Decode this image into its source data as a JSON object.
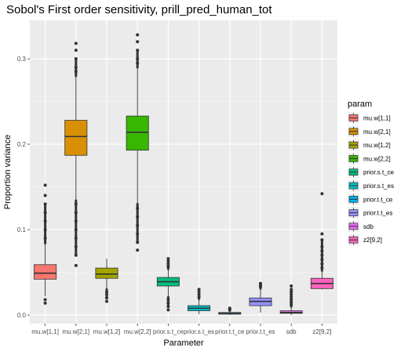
{
  "chart_data": {
    "type": "boxplot",
    "title": "Sobol's First order sensitivity,  prill_pred_human_tot",
    "xlabel": "Parameter",
    "ylabel": "Proportion variance",
    "ylim": [
      -0.01,
      0.345
    ],
    "yticks": [
      0.0,
      0.1,
      0.2,
      0.3
    ],
    "ytick_labels": [
      "0.0",
      "0.1",
      "0.2",
      "0.3"
    ],
    "grid": true,
    "legend": {
      "title": "param",
      "placement": "right"
    },
    "categories": [
      "mu.w[1,1]",
      "mu.w[2,1]",
      "mu.w[1,2]",
      "mu.w[2,2]",
      "prior.s.t_ce",
      "prior.s.t_es",
      "prior.t.t_ce",
      "prior.t.t_es",
      "sdb",
      "z2[9,2]"
    ],
    "series": [
      {
        "name": "mu.w[1,1]",
        "color": "#F8766D",
        "min": 0.022,
        "q1": 0.042,
        "median": 0.049,
        "q3": 0.059,
        "max": 0.084,
        "outliers_low": [
          0.014,
          0.018
        ],
        "outliers_high": [
          0.09,
          0.1,
          0.11,
          0.12,
          0.13,
          0.14,
          0.152
        ]
      },
      {
        "name": "mu.w[2,1]",
        "color": "#D89000",
        "min": 0.134,
        "q1": 0.187,
        "median": 0.209,
        "q3": 0.228,
        "max": 0.28,
        "outliers_low": [
          0.058,
          0.07,
          0.08,
          0.09,
          0.1,
          0.11,
          0.12,
          0.13
        ],
        "outliers_high": [
          0.285,
          0.29,
          0.3,
          0.31,
          0.318
        ]
      },
      {
        "name": "mu.w[1,2]",
        "color": "#A3A500",
        "min": 0.03,
        "q1": 0.043,
        "median": 0.048,
        "q3": 0.055,
        "max": 0.066,
        "outliers_low": [
          0.016,
          0.02,
          0.024,
          0.027
        ],
        "outliers_high": []
      },
      {
        "name": "mu.w[2,2]",
        "color": "#39B600",
        "min": 0.13,
        "q1": 0.193,
        "median": 0.214,
        "q3": 0.233,
        "max": 0.29,
        "outliers_low": [
          0.076,
          0.085,
          0.095,
          0.105,
          0.115,
          0.125
        ],
        "outliers_high": [
          0.295,
          0.3,
          0.31,
          0.32,
          0.328
        ]
      },
      {
        "name": "prior.s.t_ce",
        "color": "#00BF7D",
        "min": 0.021,
        "q1": 0.034,
        "median": 0.039,
        "q3": 0.044,
        "max": 0.054,
        "outliers_low": [
          0.006,
          0.01,
          0.014,
          0.018
        ],
        "outliers_high": [
          0.057,
          0.06,
          0.063,
          0.066
        ]
      },
      {
        "name": "prior.s.t_es",
        "color": "#00BFC4",
        "min": 0.001,
        "q1": 0.005,
        "median": 0.008,
        "q3": 0.011,
        "max": 0.019,
        "outliers_low": [],
        "outliers_high": [
          0.021,
          0.024,
          0.027,
          0.03
        ]
      },
      {
        "name": "prior.t.t_ce",
        "color": "#00B0F6",
        "min": 0.0,
        "q1": 0.001,
        "median": 0.002,
        "q3": 0.003,
        "max": 0.005,
        "outliers_low": [],
        "outliers_high": [
          0.006,
          0.007,
          0.008
        ]
      },
      {
        "name": "prior.t.t_es",
        "color": "#9590FF",
        "min": 0.003,
        "q1": 0.011,
        "median": 0.016,
        "q3": 0.02,
        "max": 0.031,
        "outliers_low": [],
        "outliers_high": [
          0.033,
          0.035,
          0.037
        ]
      },
      {
        "name": "sdb",
        "color": "#E76BF3",
        "min": 0.0,
        "q1": 0.002,
        "median": 0.003,
        "q3": 0.005,
        "max": 0.01,
        "outliers_low": [],
        "outliers_high": [
          0.012,
          0.015,
          0.018,
          0.021,
          0.024,
          0.027,
          0.03,
          0.034
        ]
      },
      {
        "name": "z2[9,2]",
        "color": "#FF62BC",
        "min": 0.03,
        "q1": 0.031,
        "median": 0.037,
        "q3": 0.043,
        "max": 0.052,
        "outliers_low": [],
        "outliers_high": [
          0.055,
          0.06,
          0.065,
          0.07,
          0.075,
          0.08,
          0.088,
          0.095,
          0.142
        ]
      }
    ]
  }
}
